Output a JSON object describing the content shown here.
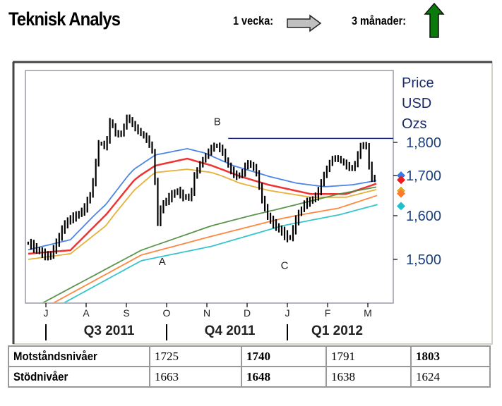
{
  "header": {
    "title": "Teknisk Analys",
    "week_label": "1 vecka:",
    "week_trend": "sideways",
    "week_color": "#c0c0c0",
    "months_label": "3 månader:",
    "months_trend": "up",
    "months_color": "#0a7a0a"
  },
  "levels_table": {
    "rows": [
      {
        "label": "Motståndsnivåer",
        "values": [
          "1725",
          "1740",
          "1791",
          "1803"
        ],
        "bold": [
          false,
          true,
          false,
          true
        ]
      },
      {
        "label": "Stödnivåer",
        "values": [
          "1663",
          "1648",
          "1638",
          "1624"
        ],
        "bold": [
          false,
          true,
          false,
          false
        ]
      }
    ]
  },
  "chart_data": {
    "type": "line",
    "title": "",
    "ylabel_lines": [
      "Price",
      "USD",
      "Ozs"
    ],
    "yticks": [
      1500,
      1600,
      1700,
      1800
    ],
    "ytick_labels": [
      "1,500",
      "1,600",
      "1,700",
      "1,800"
    ],
    "ylim": [
      1400,
      1930
    ],
    "x_unit": "months since 2011-07-01",
    "xlim": [
      -0.5,
      8.6
    ],
    "month_ticks": [
      0,
      1,
      2,
      3,
      4,
      5,
      6,
      7,
      8
    ],
    "month_labels": [
      "J",
      "A",
      "S",
      "O",
      "N",
      "D",
      "J",
      "F",
      "M"
    ],
    "quarters": [
      {
        "label": "Q3 2011",
        "start": 0,
        "end": 3
      },
      {
        "label": "Q4 2011",
        "start": 3,
        "end": 6
      },
      {
        "label": "Q1 2012",
        "start": 6,
        "end": 8.6
      }
    ],
    "price": {
      "name": "Gold price (bars)",
      "color": "#000000",
      "x": [
        -0.44,
        -0.09,
        0.09,
        0.26,
        0.44,
        0.61,
        0.79,
        0.96,
        1.14,
        1.23,
        1.32,
        1.49,
        1.61,
        1.7,
        1.88,
        2.05,
        2.07,
        2.19,
        2.37,
        2.54,
        2.68,
        2.75,
        2.89,
        3.07,
        3.25,
        3.42,
        3.6,
        3.68,
        3.86,
        4.04,
        4.21,
        4.39,
        4.56,
        4.74,
        4.88,
        5.0,
        5.21,
        5.35,
        5.53,
        5.7,
        5.88,
        6.05,
        6.23,
        6.4,
        6.58,
        6.75,
        6.93,
        7.11,
        7.28,
        7.46,
        7.63,
        7.72,
        7.84,
        7.95,
        8.07,
        8.2
      ],
      "close": [
        1537,
        1513,
        1505,
        1537,
        1577,
        1594,
        1602,
        1619,
        1663,
        1730,
        1804,
        1783,
        1879,
        1826,
        1826,
        1889,
        1870,
        1847,
        1826,
        1804,
        1762,
        1577,
        1628,
        1646,
        1663,
        1646,
        1646,
        1698,
        1740,
        1772,
        1794,
        1772,
        1719,
        1698,
        1709,
        1740,
        1719,
        1646,
        1594,
        1577,
        1561,
        1545,
        1594,
        1628,
        1637,
        1654,
        1709,
        1751,
        1751,
        1730,
        1719,
        1751,
        1794,
        1794,
        1698,
        1688
      ]
    },
    "moving_averages": [
      {
        "name": "short MA (blue)",
        "color": "#3a78e6",
        "x": [
          -0.44,
          0.61,
          1.49,
          2.19,
          2.72,
          3.51,
          3.95,
          4.65,
          5.53,
          6.23,
          6.93,
          7.63,
          8.25
        ],
        "y": [
          1522,
          1545,
          1628,
          1719,
          1762,
          1781,
          1768,
          1730,
          1698,
          1681,
          1672,
          1677,
          1688
        ]
      },
      {
        "name": "MA (red)",
        "color": "#ee1c1c",
        "x": [
          -0.44,
          0.61,
          1.49,
          2.19,
          2.72,
          3.51,
          4.12,
          4.82,
          5.53,
          6.58,
          7.46,
          8.25
        ],
        "y": [
          1513,
          1521,
          1602,
          1688,
          1730,
          1751,
          1730,
          1698,
          1677,
          1654,
          1654,
          1681
        ]
      },
      {
        "name": "MA (yellow)",
        "color": "#e3a823",
        "x": [
          -0.44,
          0.61,
          1.49,
          2.19,
          2.72,
          3.51,
          4.12,
          4.82,
          5.53,
          6.58,
          7.46,
          8.25
        ],
        "y": [
          1500,
          1513,
          1577,
          1663,
          1709,
          1719,
          1709,
          1681,
          1663,
          1646,
          1646,
          1666
        ]
      },
      {
        "name": "long MA (green)",
        "color": "#4a8a3a",
        "x": [
          -0.09,
          2.37,
          4.12,
          5.88,
          7.28,
          8.25
        ],
        "y": [
          1400,
          1521,
          1577,
          1619,
          1654,
          1672
        ]
      },
      {
        "name": "long MA (orange)",
        "color": "#ff7a2a",
        "x": [
          0.18,
          2.37,
          4.12,
          5.88,
          7.28,
          8.25
        ],
        "y": [
          1400,
          1510,
          1553,
          1594,
          1619,
          1651
        ]
      },
      {
        "name": "long MA (cyan)",
        "color": "#1fbfc8",
        "x": [
          0.44,
          2.37,
          4.12,
          5.88,
          7.28,
          8.25
        ],
        "y": [
          1400,
          1497,
          1530,
          1577,
          1602,
          1628
        ]
      }
    ],
    "resistance_line": {
      "value": 1812,
      "from": 4.53,
      "color": "#1a237e"
    },
    "annotations": [
      {
        "label": "A",
        "x": 2.89,
        "y": 1487
      },
      {
        "label": "B",
        "x": 4.26,
        "y": 1852
      },
      {
        "label": "C",
        "x": 5.93,
        "y": 1478
      }
    ]
  }
}
